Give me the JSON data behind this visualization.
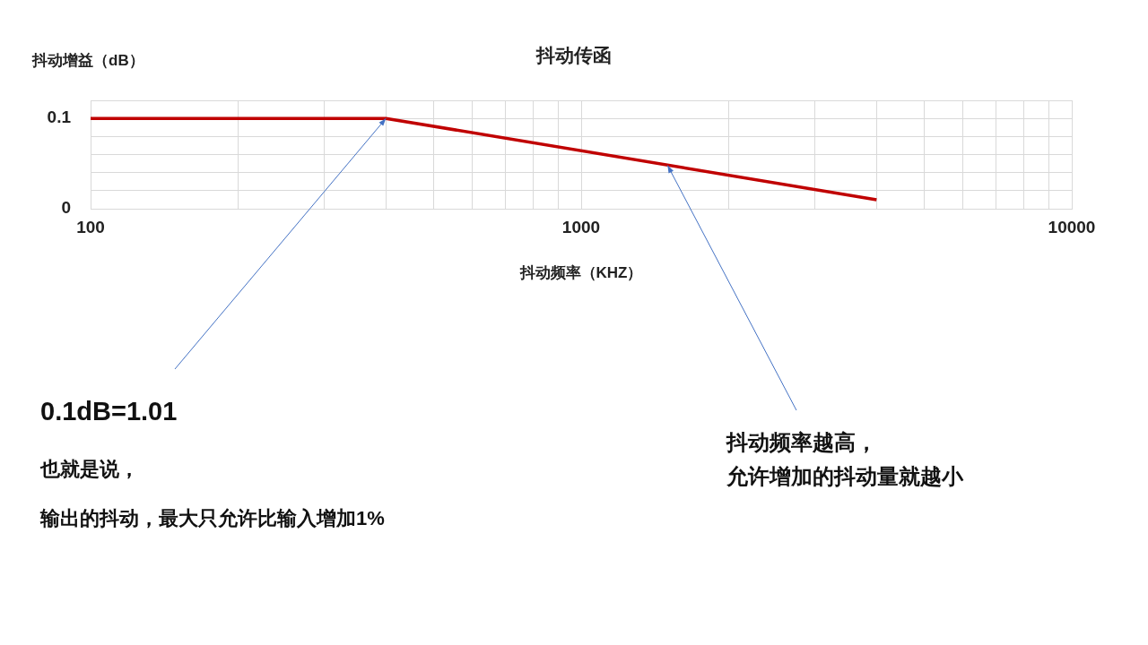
{
  "chart_data": {
    "type": "line",
    "title": "抖动传函",
    "xlabel": "抖动频率（KHZ）",
    "ylabel": "抖动增益（dB）",
    "x": [
      100,
      400,
      4000
    ],
    "series": [
      {
        "color": "#c00000",
        "values": [
          0.1,
          0.1,
          0.01
        ]
      }
    ],
    "log": "x",
    "xlim": [
      100,
      10000
    ],
    "xticks": [
      100,
      {
        "value": 200,
        "label": null
      },
      {
        "value": 300,
        "label": null
      },
      {
        "value": 400,
        "label": null
      },
      {
        "value": 500,
        "label": null
      },
      {
        "value": 600,
        "label": null
      },
      {
        "value": 700,
        "label": null
      },
      {
        "value": 800,
        "label": null
      },
      {
        "value": 900,
        "label": null
      },
      1000,
      {
        "value": 2000,
        "label": null
      },
      {
        "value": 3000,
        "label": null
      },
      {
        "value": 4000,
        "label": null
      },
      {
        "value": 5000,
        "label": null
      },
      {
        "value": 6000,
        "label": null
      },
      {
        "value": 7000,
        "label": null
      },
      {
        "value": 8000,
        "label": null
      },
      {
        "value": 9000,
        "label": null
      },
      10000
    ],
    "ylim": [
      0,
      0.12
    ],
    "yticks": [
      0,
      {
        "value": 0.02,
        "label": null
      },
      {
        "value": 0.04,
        "label": null
      },
      {
        "value": 0.06,
        "label": null
      },
      {
        "value": 0.08,
        "label": null
      },
      0.1,
      {
        "value": 0.12,
        "label": null
      }
    ],
    "grid": true,
    "legend": false,
    "marker": "none",
    "line_style": "solid",
    "annotations": [
      {
        "text": "0.1dB=1.01",
        "x": 400,
        "y": 0.1
      },
      "也就是说，",
      "输出的抖动，最大只允许比输入增加1%",
      {
        "text": "抖动频率越高，",
        "x": 1500,
        "y": 0.048
      },
      "允许增加的抖动量就越小"
    ]
  }
}
